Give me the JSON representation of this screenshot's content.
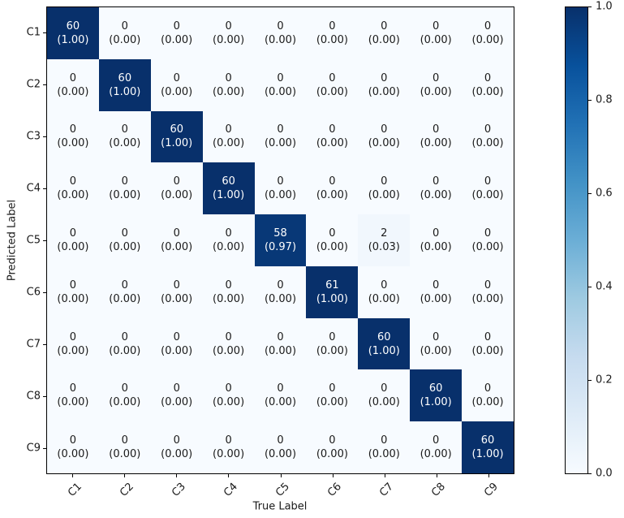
{
  "chart_data": {
    "type": "heatmap",
    "title": "",
    "xlabel": "True Label",
    "ylabel": "Predicted Label",
    "x_categories": [
      "C1",
      "C2",
      "C3",
      "C4",
      "C5",
      "C6",
      "C7",
      "C8",
      "C9"
    ],
    "y_categories": [
      "C1",
      "C2",
      "C3",
      "C4",
      "C5",
      "C6",
      "C7",
      "C8",
      "C9"
    ],
    "counts": [
      [
        60,
        0,
        0,
        0,
        0,
        0,
        0,
        0,
        0
      ],
      [
        0,
        60,
        0,
        0,
        0,
        0,
        0,
        0,
        0
      ],
      [
        0,
        0,
        60,
        0,
        0,
        0,
        0,
        0,
        0
      ],
      [
        0,
        0,
        0,
        60,
        0,
        0,
        0,
        0,
        0
      ],
      [
        0,
        0,
        0,
        0,
        58,
        0,
        2,
        0,
        0
      ],
      [
        0,
        0,
        0,
        0,
        0,
        61,
        0,
        0,
        0
      ],
      [
        0,
        0,
        0,
        0,
        0,
        0,
        60,
        0,
        0
      ],
      [
        0,
        0,
        0,
        0,
        0,
        0,
        0,
        60,
        0
      ],
      [
        0,
        0,
        0,
        0,
        0,
        0,
        0,
        0,
        60
      ]
    ],
    "proportions": [
      [
        1.0,
        0.0,
        0.0,
        0.0,
        0.0,
        0.0,
        0.0,
        0.0,
        0.0
      ],
      [
        0.0,
        1.0,
        0.0,
        0.0,
        0.0,
        0.0,
        0.0,
        0.0,
        0.0
      ],
      [
        0.0,
        0.0,
        1.0,
        0.0,
        0.0,
        0.0,
        0.0,
        0.0,
        0.0
      ],
      [
        0.0,
        0.0,
        0.0,
        1.0,
        0.0,
        0.0,
        0.0,
        0.0,
        0.0
      ],
      [
        0.0,
        0.0,
        0.0,
        0.0,
        0.97,
        0.0,
        0.03,
        0.0,
        0.0
      ],
      [
        0.0,
        0.0,
        0.0,
        0.0,
        0.0,
        1.0,
        0.0,
        0.0,
        0.0
      ],
      [
        0.0,
        0.0,
        0.0,
        0.0,
        0.0,
        0.0,
        1.0,
        0.0,
        0.0
      ],
      [
        0.0,
        0.0,
        0.0,
        0.0,
        0.0,
        0.0,
        0.0,
        1.0,
        0.0
      ],
      [
        0.0,
        0.0,
        0.0,
        0.0,
        0.0,
        0.0,
        0.0,
        0.0,
        1.0
      ]
    ],
    "cell_text_format": "count over (proportion to 2 decimals)",
    "colormap": "Blues",
    "colormap_stops": [
      [
        0.0,
        "#f7fbff"
      ],
      [
        0.125,
        "#deebf7"
      ],
      [
        0.25,
        "#c6dbef"
      ],
      [
        0.375,
        "#9ecae1"
      ],
      [
        0.5,
        "#6baed6"
      ],
      [
        0.625,
        "#4292c6"
      ],
      [
        0.75,
        "#2171b5"
      ],
      [
        0.875,
        "#08519c"
      ],
      [
        1.0,
        "#08306b"
      ]
    ],
    "text_color_dark_cells": "#ffffff",
    "text_color_light_cells": "#1a1a1a",
    "grid": false,
    "colorbar": {
      "position": "right",
      "min": 0.0,
      "max": 1.0,
      "tick_labels": [
        "0.0",
        "0.2",
        "0.4",
        "0.6",
        "0.8",
        "1.0"
      ],
      "tick_values": [
        0.0,
        0.2,
        0.4,
        0.6,
        0.8,
        1.0
      ]
    }
  }
}
